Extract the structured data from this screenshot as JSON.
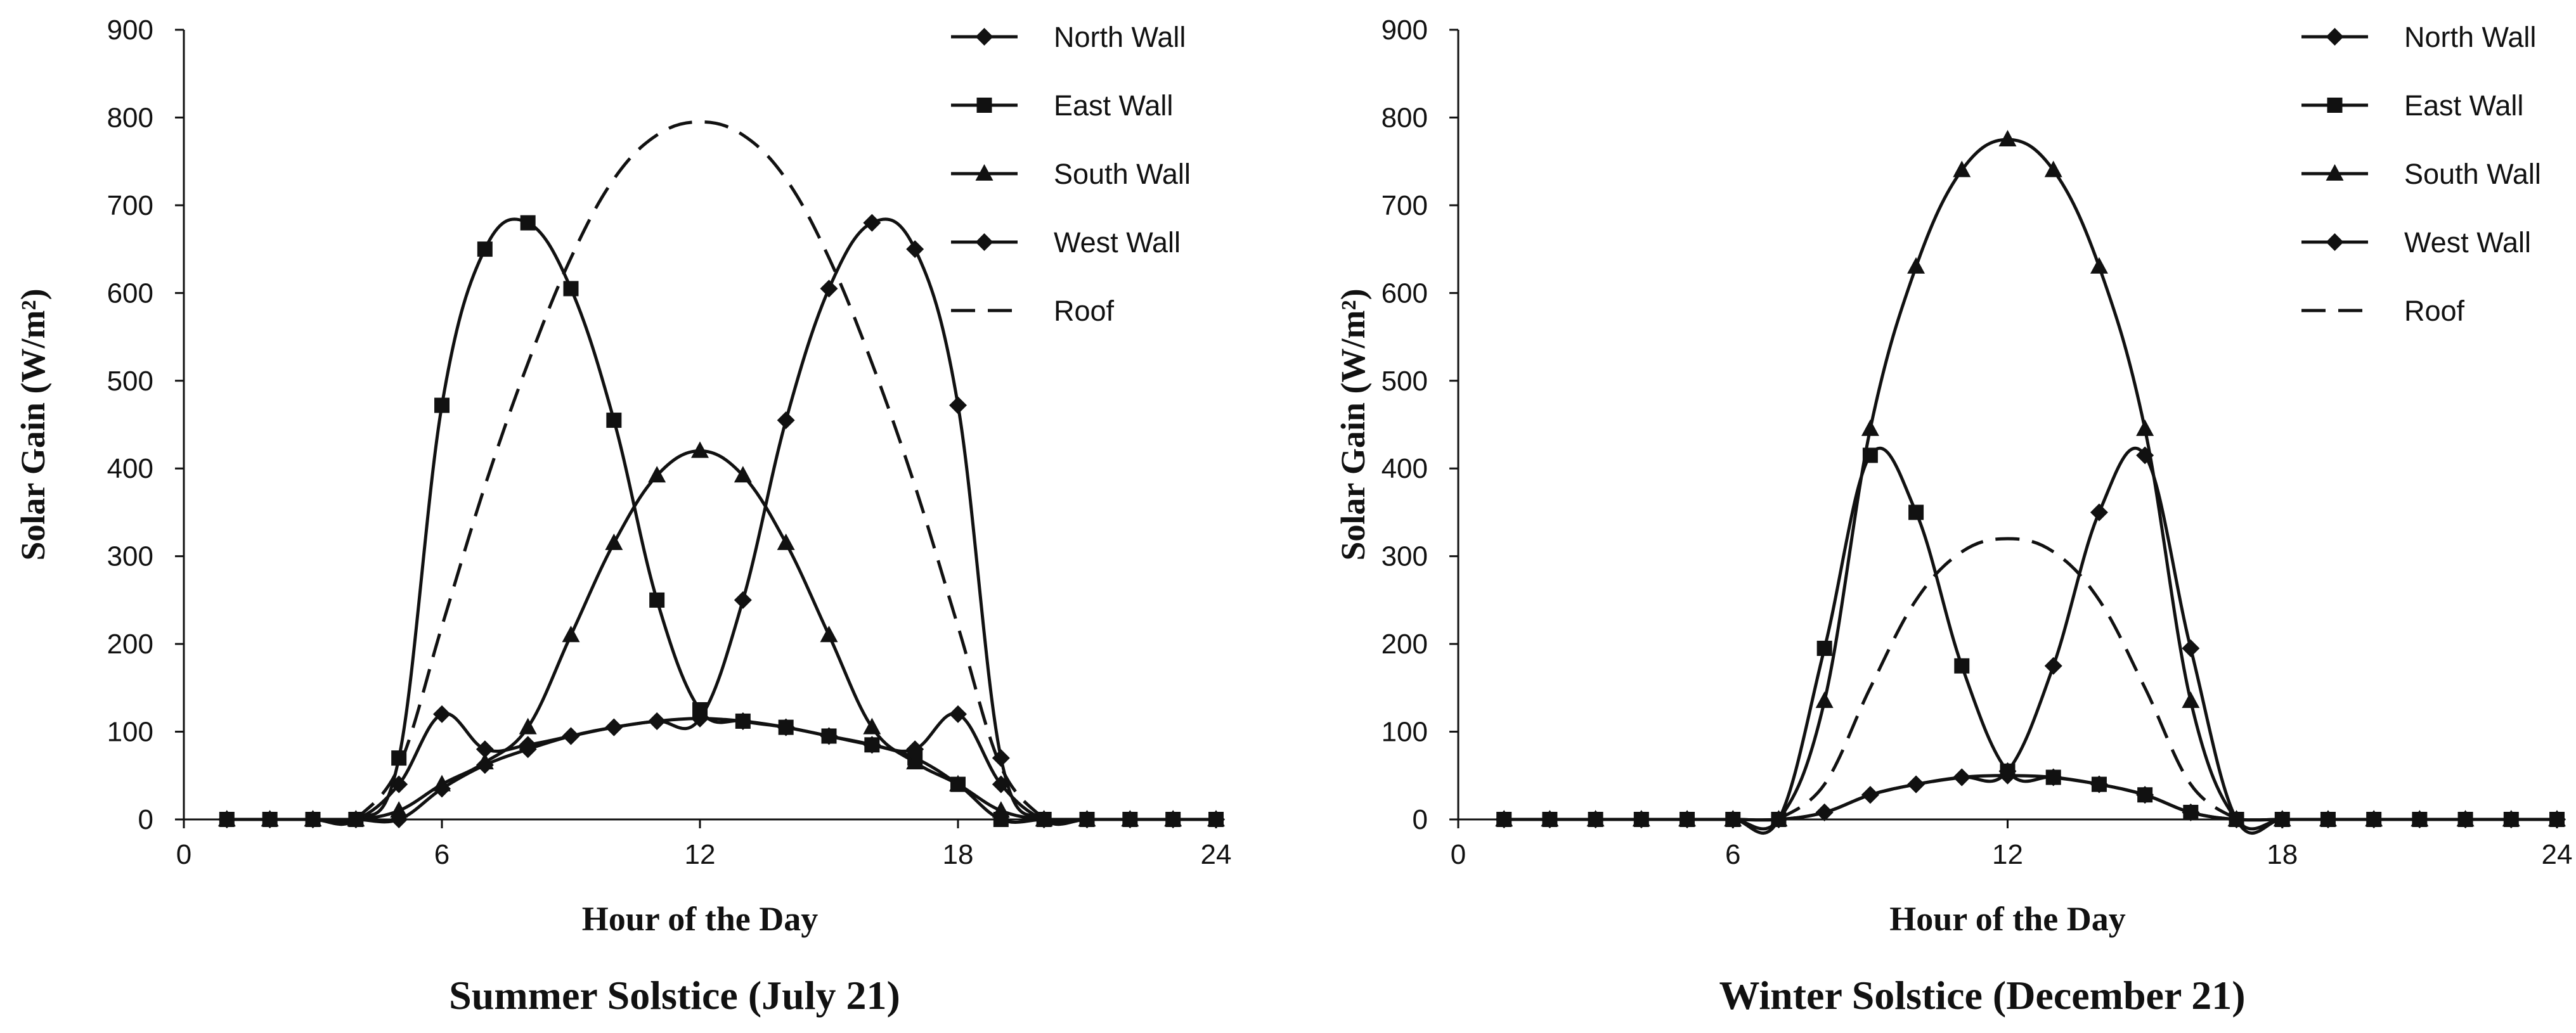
{
  "chart_data": [
    {
      "type": "line",
      "caption": "Summer Solstice (July 21)",
      "xlabel": "Hour of the Day",
      "ylabel": "Solar Gain (W/m²)",
      "xlim": [
        0,
        24
      ],
      "ylim": [
        0,
        900
      ],
      "xticks": [
        0,
        6,
        12,
        18,
        24
      ],
      "yticks": [
        0,
        100,
        200,
        300,
        400,
        500,
        600,
        700,
        800,
        900
      ],
      "legend_position": "top-right",
      "series": [
        {
          "name": "North Wall",
          "marker": "diamond",
          "dash": "solid",
          "x": [
            1,
            2,
            3,
            4,
            5,
            6,
            7,
            8,
            9,
            10,
            11,
            12,
            13,
            14,
            15,
            16,
            17,
            18,
            19,
            20,
            21,
            22,
            23,
            24
          ],
          "values": [
            0,
            0,
            0,
            0,
            40,
            120,
            80,
            85,
            95,
            105,
            112,
            115,
            112,
            105,
            95,
            85,
            80,
            120,
            40,
            0,
            0,
            0,
            0,
            0
          ]
        },
        {
          "name": "East Wall",
          "marker": "square",
          "dash": "solid",
          "x": [
            1,
            2,
            3,
            4,
            5,
            6,
            7,
            8,
            9,
            10,
            11,
            12,
            13,
            14,
            15,
            16,
            17,
            18,
            19,
            20,
            21,
            22,
            23,
            24
          ],
          "values": [
            0,
            0,
            0,
            0,
            70,
            472,
            650,
            680,
            605,
            455,
            250,
            125,
            112,
            105,
            95,
            85,
            70,
            40,
            0,
            0,
            0,
            0,
            0,
            0
          ]
        },
        {
          "name": "South Wall",
          "marker": "triangle",
          "dash": "solid",
          "x": [
            1,
            2,
            3,
            4,
            5,
            6,
            7,
            8,
            9,
            10,
            11,
            12,
            13,
            14,
            15,
            16,
            17,
            18,
            19,
            20,
            21,
            22,
            23,
            24
          ],
          "values": [
            0,
            0,
            0,
            0,
            10,
            40,
            65,
            105,
            210,
            315,
            392,
            420,
            392,
            315,
            210,
            105,
            65,
            40,
            10,
            0,
            0,
            0,
            0,
            0
          ]
        },
        {
          "name": "West Wall",
          "marker": "diamond",
          "dash": "solid",
          "x": [
            1,
            2,
            3,
            4,
            5,
            6,
            7,
            8,
            9,
            10,
            11,
            12,
            13,
            14,
            15,
            16,
            17,
            18,
            19,
            20,
            21,
            22,
            23,
            24
          ],
          "values": [
            0,
            0,
            0,
            0,
            0,
            35,
            62,
            80,
            95,
            105,
            112,
            115,
            250,
            455,
            605,
            680,
            650,
            472,
            70,
            0,
            0,
            0,
            0,
            0
          ]
        },
        {
          "name": "Roof",
          "marker": "none",
          "dash": "dashed",
          "x": [
            4,
            5,
            6,
            7,
            8,
            9,
            10,
            11,
            12,
            13,
            14,
            15,
            16,
            17,
            18,
            19,
            20
          ],
          "values": [
            0,
            60,
            220,
            380,
            520,
            640,
            730,
            780,
            795,
            780,
            730,
            640,
            520,
            380,
            220,
            60,
            0
          ]
        }
      ]
    },
    {
      "type": "line",
      "caption": "Winter Solstice (December 21)",
      "xlabel": "Hour of the Day",
      "ylabel": "Solar Gain (W/m²)",
      "xlim": [
        0,
        24
      ],
      "ylim": [
        0,
        900
      ],
      "xticks": [
        0,
        6,
        12,
        18,
        24
      ],
      "yticks": [
        0,
        100,
        200,
        300,
        400,
        500,
        600,
        700,
        800,
        900
      ],
      "legend_position": "top-right",
      "series": [
        {
          "name": "North Wall",
          "marker": "diamond",
          "dash": "solid",
          "x": [
            1,
            2,
            3,
            4,
            5,
            6,
            7,
            8,
            9,
            10,
            11,
            12,
            13,
            14,
            15,
            16,
            17,
            18,
            19,
            20,
            21,
            22,
            23,
            24
          ],
          "values": [
            0,
            0,
            0,
            0,
            0,
            0,
            0,
            8,
            28,
            40,
            48,
            50,
            48,
            40,
            28,
            8,
            0,
            0,
            0,
            0,
            0,
            0,
            0,
            0
          ]
        },
        {
          "name": "East Wall",
          "marker": "square",
          "dash": "solid",
          "x": [
            1,
            2,
            3,
            4,
            5,
            6,
            7,
            8,
            9,
            10,
            11,
            12,
            13,
            14,
            15,
            16,
            17,
            18,
            19,
            20,
            21,
            22,
            23,
            24
          ],
          "values": [
            0,
            0,
            0,
            0,
            0,
            0,
            0,
            195,
            415,
            350,
            175,
            55,
            48,
            40,
            28,
            8,
            0,
            0,
            0,
            0,
            0,
            0,
            0,
            0
          ]
        },
        {
          "name": "South Wall",
          "marker": "triangle",
          "dash": "solid",
          "x": [
            1,
            2,
            3,
            4,
            5,
            6,
            7,
            8,
            9,
            10,
            11,
            12,
            13,
            14,
            15,
            16,
            17,
            18,
            19,
            20,
            21,
            22,
            23,
            24
          ],
          "values": [
            0,
            0,
            0,
            0,
            0,
            0,
            0,
            135,
            445,
            630,
            740,
            775,
            740,
            630,
            445,
            135,
            0,
            0,
            0,
            0,
            0,
            0,
            0,
            0
          ]
        },
        {
          "name": "West Wall",
          "marker": "diamond",
          "dash": "solid",
          "x": [
            1,
            2,
            3,
            4,
            5,
            6,
            7,
            8,
            9,
            10,
            11,
            12,
            13,
            14,
            15,
            16,
            17,
            18,
            19,
            20,
            21,
            22,
            23,
            24
          ],
          "values": [
            0,
            0,
            0,
            0,
            0,
            0,
            0,
            8,
            28,
            40,
            48,
            55,
            175,
            350,
            415,
            195,
            0,
            0,
            0,
            0,
            0,
            0,
            0,
            0
          ]
        },
        {
          "name": "Roof",
          "marker": "none",
          "dash": "dashed",
          "x": [
            7,
            8,
            9,
            10,
            11,
            12,
            13,
            14,
            15,
            16,
            17
          ],
          "values": [
            0,
            40,
            150,
            250,
            305,
            320,
            305,
            250,
            150,
            40,
            0
          ]
        }
      ]
    }
  ]
}
